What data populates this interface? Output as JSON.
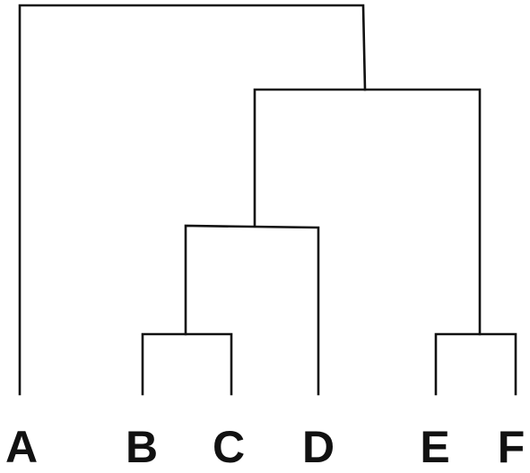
{
  "diagram": {
    "type": "dendrogram",
    "line_color": "#111111",
    "leaves": [
      {
        "id": "A",
        "label": "A"
      },
      {
        "id": "B",
        "label": "B"
      },
      {
        "id": "C",
        "label": "C"
      },
      {
        "id": "D",
        "label": "D"
      },
      {
        "id": "E",
        "label": "E"
      },
      {
        "id": "F",
        "label": "F"
      }
    ],
    "merges": [
      {
        "id": "BC",
        "children": [
          "B",
          "C"
        ]
      },
      {
        "id": "BCD",
        "children": [
          "BC",
          "D"
        ]
      },
      {
        "id": "EF",
        "children": [
          "E",
          "F"
        ]
      },
      {
        "id": "BCDEF",
        "children": [
          "BCD",
          "EF"
        ]
      },
      {
        "id": "ROOT",
        "children": [
          "A",
          "BCDEF"
        ]
      }
    ]
  }
}
